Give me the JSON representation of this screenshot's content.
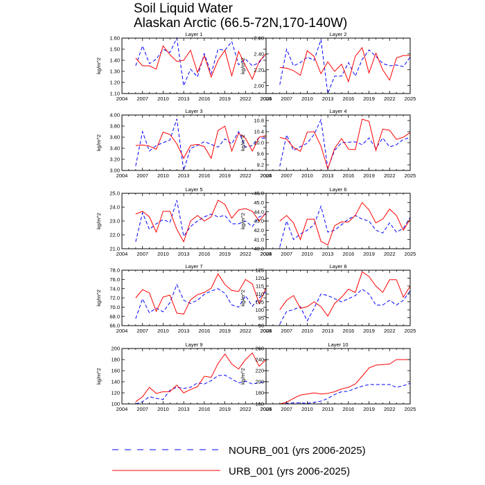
{
  "figure": {
    "title": "Soil Liquid Water",
    "subtitle": "Alaskan Arctic (66.5-72N,170-140W)",
    "colors": {
      "nourb": "#0000ff",
      "urb": "#ff0000",
      "axes": "#000000"
    }
  },
  "legend": {
    "placement": "bottom-center",
    "entries": [
      {
        "label": "NOURB_001 (yrs 2006-2025)",
        "style": "dashed",
        "color": "#0000ff"
      },
      {
        "label": "URB_001 (yrs 2006-2025)",
        "style": "solid",
        "color": "#ff0000"
      }
    ]
  },
  "chart_data": [
    {
      "type": "line",
      "title": "Layer 1",
      "ylabel": "kg/m^2",
      "xlim": [
        2004,
        2025
      ],
      "ylim": [
        1.1,
        1.6
      ],
      "xticks": [
        2004,
        2007,
        2010,
        2013,
        2016,
        2019,
        2022,
        2025
      ],
      "yticks": [
        1.1,
        1.2,
        1.3,
        1.4,
        1.5,
        1.6
      ],
      "ytick_labels": [
        "1.10",
        "1.20",
        "1.30",
        "1.40",
        "1.50",
        "1.60"
      ],
      "x": [
        2006,
        2007,
        2008,
        2009,
        2010,
        2011,
        2012,
        2013,
        2014,
        2015,
        2016,
        2017,
        2018,
        2019,
        2020,
        2021,
        2022,
        2023,
        2024,
        2025
      ],
      "series": [
        {
          "name": "NOURB_001 (yrs 2006-2025)",
          "values": [
            1.35,
            1.53,
            1.37,
            1.41,
            1.5,
            1.47,
            1.6,
            1.17,
            1.32,
            1.25,
            1.46,
            1.28,
            1.5,
            1.49,
            1.57,
            1.36,
            1.41,
            1.35,
            1.38,
            1.46
          ]
        },
        {
          "name": "URB_001 (yrs 2006-2025)",
          "values": [
            1.42,
            1.35,
            1.35,
            1.32,
            1.53,
            1.45,
            1.39,
            1.4,
            1.49,
            1.29,
            1.44,
            1.25,
            1.4,
            1.49,
            1.26,
            1.48,
            1.35,
            1.23,
            1.39,
            1.46
          ]
        }
      ]
    },
    {
      "type": "line",
      "title": "Layer 2",
      "ylabel": "kg/m^2",
      "xlim": [
        2004,
        2025
      ],
      "ylim": [
        1.9,
        2.6
      ],
      "xticks": [
        2004,
        2007,
        2010,
        2013,
        2016,
        2019,
        2022,
        2025
      ],
      "yticks": [
        2.0,
        2.2,
        2.4,
        2.6
      ],
      "ytick_labels": [
        "2.00",
        "2.20",
        "2.40",
        "2.60"
      ],
      "x": [
        2006,
        2007,
        2008,
        2009,
        2010,
        2011,
        2012,
        2013,
        2014,
        2015,
        2016,
        2017,
        2018,
        2019,
        2020,
        2021,
        2022,
        2023,
        2024,
        2025
      ],
      "series": [
        {
          "name": "NOURB_001 (yrs 2006-2025)",
          "values": [
            2.01,
            2.46,
            2.25,
            2.29,
            2.36,
            2.32,
            2.58,
            1.9,
            2.12,
            2.12,
            2.29,
            2.12,
            2.33,
            2.45,
            2.37,
            2.28,
            2.25,
            2.26,
            2.24,
            2.36
          ]
        },
        {
          "name": "URB_001 (yrs 2006-2025)",
          "values": [
            2.23,
            2.22,
            2.19,
            2.13,
            2.44,
            2.37,
            2.15,
            2.3,
            2.18,
            2.27,
            2.05,
            2.37,
            2.48,
            2.16,
            2.41,
            2.2,
            2.07,
            2.35,
            2.38,
            2.38
          ]
        }
      ]
    },
    {
      "type": "line",
      "title": "Layer 3",
      "ylabel": "kg/m^2",
      "xlim": [
        2004,
        2025
      ],
      "ylim": [
        3.0,
        4.0
      ],
      "xticks": [
        2004,
        2007,
        2010,
        2013,
        2016,
        2019,
        2022,
        2025
      ],
      "yticks": [
        3.0,
        3.2,
        3.4,
        3.6,
        3.8,
        4.0
      ],
      "ytick_labels": [
        "3.00",
        "3.20",
        "3.40",
        "3.60",
        "3.80",
        "4.00"
      ],
      "x": [
        2006,
        2007,
        2008,
        2009,
        2010,
        2011,
        2012,
        2013,
        2014,
        2015,
        2016,
        2017,
        2018,
        2019,
        2020,
        2021,
        2022,
        2023,
        2024,
        2025
      ],
      "series": [
        {
          "name": "NOURB_001 (yrs 2006-2025)",
          "values": [
            3.08,
            3.7,
            3.35,
            3.45,
            3.5,
            3.55,
            3.93,
            3.0,
            3.4,
            3.45,
            3.52,
            3.47,
            3.42,
            3.57,
            3.48,
            3.7,
            3.42,
            3.45,
            3.6,
            3.57
          ]
        },
        {
          "name": "URB_001 (yrs 2006-2025)",
          "values": [
            3.45,
            3.46,
            3.44,
            3.38,
            3.69,
            3.65,
            3.48,
            3.22,
            3.45,
            3.47,
            3.43,
            3.22,
            3.72,
            3.8,
            3.35,
            3.67,
            3.58,
            3.35,
            3.6,
            3.63
          ]
        }
      ]
    },
    {
      "type": "line",
      "title": "Layer 4",
      "ylabel": "kg/m^2",
      "xlim": [
        2004,
        2025
      ],
      "ylim": [
        9.0,
        11.0
      ],
      "xticks": [
        2004,
        2007,
        2010,
        2013,
        2016,
        2019,
        2022,
        2025
      ],
      "yticks": [
        9.2,
        9.6,
        10.0,
        10.4,
        10.8
      ],
      "ytick_labels": [
        "9.2",
        "9.6",
        "10.0",
        "10.4",
        "10.8"
      ],
      "x": [
        2006,
        2007,
        2008,
        2009,
        2010,
        2011,
        2012,
        2013,
        2014,
        2015,
        2016,
        2017,
        2018,
        2019,
        2020,
        2021,
        2022,
        2023,
        2024,
        2025
      ],
      "series": [
        {
          "name": "NOURB_001 (yrs 2006-2025)",
          "values": [
            9.15,
            10.28,
            9.72,
            9.86,
            9.98,
            10.3,
            10.83,
            9.07,
            9.73,
            10.0,
            10.02,
            10.03,
            9.93,
            10.17,
            9.8,
            10.17,
            9.85,
            9.93,
            10.12,
            10.19
          ]
        },
        {
          "name": "URB_001 (yrs 2006-2025)",
          "values": [
            10.19,
            10.13,
            9.83,
            9.69,
            10.38,
            10.4,
            9.88,
            9.05,
            9.8,
            10.15,
            9.77,
            9.75,
            10.85,
            10.77,
            9.72,
            10.49,
            10.45,
            10.12,
            10.2,
            10.37
          ]
        }
      ]
    },
    {
      "type": "line",
      "title": "Layer 5",
      "ylabel": "kg/m^2",
      "xlim": [
        2004,
        2025
      ],
      "ylim": [
        21.0,
        25.0
      ],
      "xticks": [
        2004,
        2007,
        2010,
        2013,
        2016,
        2019,
        2022,
        2025
      ],
      "yticks": [
        21.0,
        22.0,
        23.0,
        24.0,
        25.0
      ],
      "ytick_labels": [
        "21.0",
        "22.0",
        "23.0",
        "24.0",
        "25.0"
      ],
      "x": [
        2006,
        2007,
        2008,
        2009,
        2010,
        2011,
        2012,
        2013,
        2014,
        2015,
        2016,
        2017,
        2018,
        2019,
        2020,
        2021,
        2022,
        2023,
        2024,
        2025
      ],
      "series": [
        {
          "name": "NOURB_001 (yrs 2006-2025)",
          "values": [
            21.5,
            23.6,
            22.4,
            22.8,
            23.1,
            22.9,
            24.5,
            21.9,
            22.6,
            23.0,
            23.3,
            23.5,
            23.3,
            23.4,
            22.8,
            22.8,
            23.0,
            22.6,
            23.3,
            23.5
          ]
        },
        {
          "name": "URB_001 (yrs 2006-2025)",
          "values": [
            23.5,
            23.7,
            23.3,
            22.2,
            23.7,
            23.7,
            22.4,
            21.5,
            23.0,
            23.4,
            23.0,
            23.3,
            24.5,
            24.2,
            23.2,
            23.8,
            23.9,
            23.7,
            23.0,
            23.6
          ]
        }
      ]
    },
    {
      "type": "line",
      "title": "Layer 6",
      "ylabel": "kg/m^2",
      "xlim": [
        2004,
        2025
      ],
      "ylim": [
        40.0,
        46.0
      ],
      "xticks": [
        2004,
        2007,
        2010,
        2013,
        2016,
        2019,
        2022,
        2025
      ],
      "yticks": [
        40.0,
        41.0,
        42.0,
        43.0,
        44.0,
        45.0,
        46.0
      ],
      "ytick_labels": [
        "40.0",
        "41.0",
        "42.0",
        "43.0",
        "44.0",
        "45.0",
        "46.0"
      ],
      "x": [
        2006,
        2007,
        2008,
        2009,
        2010,
        2011,
        2012,
        2013,
        2014,
        2015,
        2016,
        2017,
        2018,
        2019,
        2020,
        2021,
        2022,
        2023,
        2024,
        2025
      ],
      "series": [
        {
          "name": "NOURB_001 (yrs 2006-2025)",
          "values": [
            40.2,
            43.0,
            41.0,
            41.6,
            42.0,
            42.6,
            44.6,
            41.8,
            42.0,
            42.6,
            43.2,
            43.6,
            43.2,
            43.0,
            42.0,
            41.7,
            42.8,
            41.8,
            42.2,
            43.4
          ]
        },
        {
          "name": "URB_001 (yrs 2006-2025)",
          "values": [
            43.0,
            43.6,
            42.8,
            41.0,
            43.2,
            43.2,
            40.8,
            40.4,
            42.5,
            42.9,
            42.9,
            43.6,
            45.0,
            44.2,
            42.8,
            43.2,
            44.3,
            43.6,
            42.0,
            43.2
          ]
        }
      ]
    },
    {
      "type": "line",
      "title": "Layer 7",
      "ylabel": "kg/m^2",
      "xlim": [
        2004,
        2025
      ],
      "ylim": [
        66.0,
        78.0
      ],
      "xticks": [
        2004,
        2007,
        2010,
        2013,
        2016,
        2019,
        2022,
        2025
      ],
      "yticks": [
        66.0,
        68.0,
        70.0,
        72.0,
        74.0,
        76.0,
        78.0
      ],
      "ytick_labels": [
        "66.0",
        "68.0",
        "70.0",
        "72.0",
        "74.0",
        "76.0",
        "78.0"
      ],
      "x": [
        2006,
        2007,
        2008,
        2009,
        2010,
        2011,
        2012,
        2013,
        2014,
        2015,
        2016,
        2017,
        2018,
        2019,
        2020,
        2021,
        2022,
        2023,
        2024,
        2025
      ],
      "series": [
        {
          "name": "NOURB_001 (yrs 2006-2025)",
          "values": [
            67.5,
            71.8,
            68.8,
            69.8,
            69.0,
            71.0,
            74.9,
            71.5,
            70.8,
            71.5,
            72.8,
            73.5,
            74.0,
            73.0,
            70.5,
            70.0,
            72.5,
            70.2,
            72.0,
            73.4
          ]
        },
        {
          "name": "URB_001 (yrs 2006-2025)",
          "values": [
            72.0,
            73.8,
            73.1,
            69.1,
            72.2,
            72.6,
            68.7,
            68.5,
            71.6,
            72.7,
            73.2,
            74.1,
            77.2,
            74.9,
            73.6,
            73.4,
            76.0,
            75.0,
            70.8,
            74.2
          ]
        }
      ]
    },
    {
      "type": "line",
      "title": "Layer 8",
      "ylabel": "kg/m^2",
      "xlim": [
        2004,
        2025
      ],
      "ylim": [
        90,
        125
      ],
      "xticks": [
        2004,
        2007,
        2010,
        2013,
        2016,
        2019,
        2022,
        2025
      ],
      "yticks": [
        90,
        95,
        100,
        105,
        110,
        115,
        120,
        125
      ],
      "ytick_labels": [
        "90",
        "95",
        "100",
        "105",
        "110",
        "115",
        "120",
        "125"
      ],
      "x": [
        2006,
        2007,
        2008,
        2009,
        2010,
        2011,
        2012,
        2013,
        2014,
        2015,
        2016,
        2017,
        2018,
        2019,
        2020,
        2021,
        2022,
        2023,
        2024,
        2025
      ],
      "series": [
        {
          "name": "NOURB_001 (yrs 2006-2025)",
          "values": [
            91,
            99,
            100,
            102,
            93,
            101,
            110,
            109,
            107,
            105,
            107,
            109,
            113,
            110,
            103,
            103,
            106,
            103,
            106,
            112
          ]
        },
        {
          "name": "URB_001 (yrs 2006-2025)",
          "values": [
            100,
            106,
            109,
            101,
            102,
            105,
            102,
            96,
            104,
            108,
            113,
            111,
            124,
            121,
            115,
            111,
            119,
            119,
            108,
            115
          ]
        }
      ]
    },
    {
      "type": "line",
      "title": "Layer 9",
      "ylabel": "kg/m^2",
      "xlim": [
        2004,
        2025
      ],
      "ylim": [
        100,
        200
      ],
      "xticks": [
        2004,
        2007,
        2010,
        2013,
        2016,
        2019,
        2022,
        2025
      ],
      "yticks": [
        100,
        120,
        140,
        160,
        180,
        200
      ],
      "ytick_labels": [
        "100",
        "120",
        "140",
        "160",
        "180",
        "200"
      ],
      "x": [
        2006,
        2007,
        2008,
        2009,
        2010,
        2011,
        2012,
        2013,
        2014,
        2015,
        2016,
        2017,
        2018,
        2019,
        2020,
        2021,
        2022,
        2023,
        2024,
        2025
      ],
      "series": [
        {
          "name": "NOURB_001 (yrs 2006-2025)",
          "values": [
            100,
            104,
            113,
            110,
            108,
            125,
            130,
            128,
            130,
            138,
            136,
            142,
            151,
            152,
            145,
            138,
            141,
            136,
            138,
            141
          ]
        },
        {
          "name": "URB_001 (yrs 2006-2025)",
          "values": [
            104,
            113,
            130,
            119,
            122,
            122,
            134,
            120,
            126,
            131,
            150,
            148,
            173,
            190,
            172,
            163,
            180,
            192,
            168,
            180
          ]
        }
      ]
    },
    {
      "type": "line",
      "title": "Layer 10",
      "ylabel": "kg/m^2",
      "xlim": [
        2004,
        2025
      ],
      "ylim": [
        160,
        260
      ],
      "xticks": [
        2004,
        2007,
        2010,
        2013,
        2016,
        2019,
        2022,
        2025
      ],
      "yticks": [
        160,
        180,
        200,
        220,
        240,
        260
      ],
      "ytick_labels": [
        "160",
        "180",
        "200",
        "220",
        "240",
        "260"
      ],
      "x": [
        2006,
        2007,
        2008,
        2009,
        2010,
        2011,
        2012,
        2013,
        2014,
        2015,
        2016,
        2017,
        2018,
        2019,
        2020,
        2021,
        2022,
        2023,
        2024,
        2025
      ],
      "series": [
        {
          "name": "NOURB_001 (yrs 2006-2025)",
          "values": [
            160,
            161,
            162,
            162,
            161,
            163,
            165,
            170,
            177,
            182,
            183,
            188,
            192,
            195,
            195,
            195,
            195,
            190,
            193,
            197
          ]
        },
        {
          "name": "URB_001 (yrs 2006-2025)",
          "values": [
            160,
            163,
            170,
            176,
            178,
            180,
            178,
            179,
            182,
            187,
            190,
            196,
            210,
            225,
            230,
            231,
            232,
            240,
            240,
            240
          ]
        }
      ]
    }
  ]
}
